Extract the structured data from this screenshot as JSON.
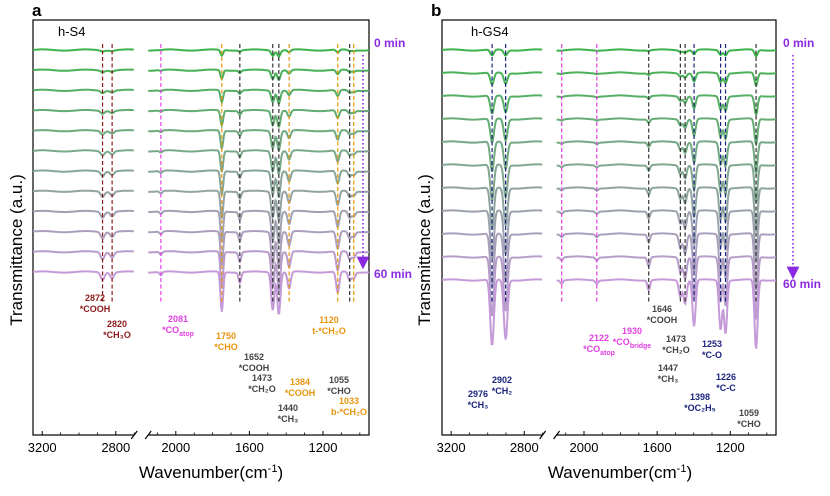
{
  "figure": {
    "y_label": "Transmittance (a.u.)",
    "x_label_main": "Wavenumber(cm",
    "x_label_sup": "-1",
    "x_label_end": ")"
  },
  "chart_data": [
    {
      "type": "line",
      "panel": "a",
      "sample": "h-S4",
      "start_label": "0 min",
      "end_label": "60 min",
      "xlabel": "Wavenumber(cm-1)",
      "ylabel": "Transmittance (a.u.)",
      "xaxis": {
        "reversed": true,
        "break": [
          2700,
          2150
        ],
        "ticks": [
          3200,
          2800,
          2000,
          1600,
          1200
        ],
        "range": [
          3250,
          950
        ]
      },
      "series_count": 12,
      "colors": {
        "first": "#3cb34a",
        "last": "#c59ad8",
        "grid_lines": [
          "#8b1a1a",
          "#e040e0",
          "#e8950c",
          "#333333"
        ]
      },
      "peaks": [
        {
          "x": 2872,
          "depth": 0.18
        },
        {
          "x": 2820,
          "depth": 0.14
        },
        {
          "x": 2081,
          "depth": 0.08
        },
        {
          "x": 1750,
          "depth": 0.95
        },
        {
          "x": 1652,
          "depth": 0.25
        },
        {
          "x": 1473,
          "depth": 0.9
        },
        {
          "x": 1440,
          "depth": 1.0
        },
        {
          "x": 1384,
          "depth": 0.4
        },
        {
          "x": 1120,
          "depth": 0.5
        },
        {
          "x": 1055,
          "depth": 0.2
        },
        {
          "x": 1033,
          "depth": 0.15
        }
      ],
      "vlines": [
        {
          "x": 2872,
          "color": "#8b1a1a"
        },
        {
          "x": 2820,
          "color": "#8b1a1a"
        },
        {
          "x": 2081,
          "color": "#e040e0"
        },
        {
          "x": 1750,
          "color": "#e8950c"
        },
        {
          "x": 1652,
          "color": "#333333"
        },
        {
          "x": 1473,
          "color": "#333333"
        },
        {
          "x": 1440,
          "color": "#333333"
        },
        {
          "x": 1384,
          "color": "#e8950c"
        },
        {
          "x": 1120,
          "color": "#e8950c"
        },
        {
          "x": 1055,
          "color": "#333333"
        },
        {
          "x": 1033,
          "color": "#e8950c"
        }
      ],
      "annotations": [
        {
          "id": "a-2872",
          "line1": "2872",
          "line2": "*COOH",
          "color": "#8b1a1a"
        },
        {
          "id": "a-2820",
          "line1": "2820",
          "line2": "*CH₃O",
          "color": "#8b1a1a"
        },
        {
          "id": "a-2081",
          "line1": "2081",
          "line2": "*CO",
          "sub": "atop",
          "color": "#e040e0"
        },
        {
          "id": "a-1750",
          "line1": "1750",
          "line2": "*CHO",
          "color": "#e8950c"
        },
        {
          "id": "a-1652",
          "line1": "1652",
          "line2": "*COOH",
          "color": "#444444"
        },
        {
          "id": "a-1473",
          "line1": "1473",
          "line2": "*CH₂O",
          "color": "#444444"
        },
        {
          "id": "a-1440",
          "line1": "1440",
          "line2": "*CH₃",
          "color": "#444444"
        },
        {
          "id": "a-1384",
          "line1": "1384",
          "line2": "*COOH",
          "color": "#e8950c"
        },
        {
          "id": "a-1120",
          "line1": "1120",
          "line2": "t-*CH₂O",
          "color": "#e8950c"
        },
        {
          "id": "a-1055",
          "line1": "1055",
          "line2": "*CHO",
          "color": "#444444"
        },
        {
          "id": "a-1033",
          "line1": "1033",
          "line2": "b-*CH₂O",
          "color": "#e8950c"
        }
      ]
    },
    {
      "type": "line",
      "panel": "b",
      "sample": "h-GS4",
      "start_label": "0 min",
      "end_label": "60 min",
      "xlabel": "Wavenumber(cm-1)",
      "ylabel": "Transmittance (a.u.)",
      "xaxis": {
        "reversed": true,
        "break": [
          2700,
          2150
        ],
        "ticks": [
          3200,
          2800,
          2000,
          1600,
          1200
        ],
        "range": [
          3250,
          950
        ]
      },
      "series_count": 11,
      "colors": {
        "first": "#3cb34a",
        "last": "#c59ad8",
        "grid_lines": [
          "#1a237e",
          "#e040e0",
          "#333333"
        ]
      },
      "peaks": [
        {
          "x": 2976,
          "depth": 1.0
        },
        {
          "x": 2902,
          "depth": 0.9
        },
        {
          "x": 2122,
          "depth": 0.05
        },
        {
          "x": 1930,
          "depth": 0.05
        },
        {
          "x": 1646,
          "depth": 0.15
        },
        {
          "x": 1473,
          "depth": 0.25
        },
        {
          "x": 1447,
          "depth": 0.35
        },
        {
          "x": 1398,
          "depth": 0.7
        },
        {
          "x": 1253,
          "depth": 0.75
        },
        {
          "x": 1226,
          "depth": 0.8
        },
        {
          "x": 1059,
          "depth": 1.05
        }
      ],
      "vlines": [
        {
          "x": 2976,
          "color": "#1a237e"
        },
        {
          "x": 2902,
          "color": "#1a237e"
        },
        {
          "x": 2122,
          "color": "#e040e0"
        },
        {
          "x": 1930,
          "color": "#e040e0"
        },
        {
          "x": 1646,
          "color": "#333333"
        },
        {
          "x": 1473,
          "color": "#333333"
        },
        {
          "x": 1447,
          "color": "#333333"
        },
        {
          "x": 1398,
          "color": "#1a237e"
        },
        {
          "x": 1253,
          "color": "#1a237e"
        },
        {
          "x": 1226,
          "color": "#1a237e"
        },
        {
          "x": 1059,
          "color": "#333333"
        }
      ],
      "annotations": [
        {
          "id": "b-2976",
          "line1": "2976",
          "line2": "*CH₃",
          "color": "#1a237e"
        },
        {
          "id": "b-2902",
          "line1": "2902",
          "line2": "*CH₂",
          "color": "#1a237e"
        },
        {
          "id": "b-2122",
          "line1": "2122",
          "line2": "*CO",
          "sub": "atop",
          "color": "#e040e0"
        },
        {
          "id": "b-1930",
          "line1": "1930",
          "line2": "*CO",
          "sub": "bridge",
          "color": "#e040e0"
        },
        {
          "id": "b-1646",
          "line1": "1646",
          "line2": "*COOH",
          "color": "#444444"
        },
        {
          "id": "b-1473",
          "line1": "1473",
          "line2": "*CH₂O",
          "color": "#444444"
        },
        {
          "id": "b-1447",
          "line1": "1447",
          "line2": "*CH₃",
          "color": "#444444"
        },
        {
          "id": "b-1398",
          "line1": "1398",
          "line2": "*OC₂H₅",
          "color": "#1a237e"
        },
        {
          "id": "b-1253",
          "line1": "1253",
          "line2": "*C-O",
          "color": "#1a237e"
        },
        {
          "id": "b-1226",
          "line1": "1226",
          "line2": "*C-C",
          "color": "#1a237e"
        },
        {
          "id": "b-1059",
          "line1": "1059",
          "line2": "*CHO",
          "color": "#444444"
        }
      ]
    }
  ]
}
